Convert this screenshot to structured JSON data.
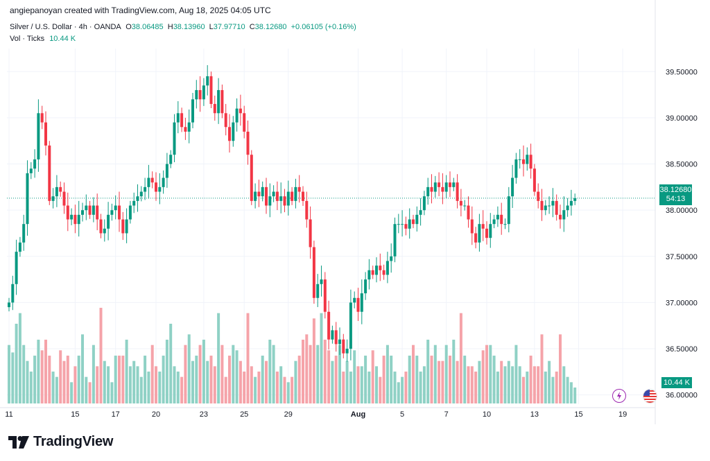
{
  "header": {
    "attribution": "angiepanoyan created with TradingView.com, Aug 18, 2025 04:05 UTC"
  },
  "legend": {
    "symbol": "Silver / U.S. Dollar · 4h · OANDA",
    "o_label": "O",
    "o_value": "38.06485",
    "h_label": "H",
    "h_value": "38.13960",
    "l_label": "L",
    "l_value": "37.97710",
    "c_label": "C",
    "c_value": "38.12680",
    "change": "+0.06105 (+0.16%)",
    "vol_label": "Vol · Ticks",
    "vol_value": "10.44 K"
  },
  "price_tag": {
    "price": "38.12680",
    "countdown": "54:13"
  },
  "volume_tag": "10.44 K",
  "logo": {
    "text": "TradingView"
  },
  "colors": {
    "up": "#089981",
    "down": "#f23645",
    "up_vol": "#8fd1c5",
    "down_vol": "#f5a3a9",
    "grid": "#f0f3fa"
  },
  "icons": [
    "lightning-icon",
    "us-flag-icon",
    "tradingview-logo-icon"
  ],
  "chart_data": {
    "type": "candlestick",
    "ylim": [
      35.9,
      39.75
    ],
    "y_ticks": [
      "39.50000",
      "39.00000",
      "38.50000",
      "38.00000",
      "37.50000",
      "37.00000",
      "36.50000",
      "36.00000"
    ],
    "y_tick_values": [
      39.5,
      39.0,
      38.5,
      38.0,
      37.5,
      37.0,
      36.5,
      36.0
    ],
    "x_ticks": [
      {
        "label": "11",
        "bar": 0,
        "bold": false
      },
      {
        "label": "15",
        "bar": 18,
        "bold": false
      },
      {
        "label": "17",
        "bar": 29,
        "bold": false
      },
      {
        "label": "20",
        "bar": 40,
        "bold": false
      },
      {
        "label": "23",
        "bar": 53,
        "bold": false
      },
      {
        "label": "25",
        "bar": 64,
        "bold": false
      },
      {
        "label": "29",
        "bar": 76,
        "bold": false
      },
      {
        "label": "Aug",
        "bar": 95,
        "bold": true
      },
      {
        "label": "5",
        "bar": 107,
        "bold": false
      },
      {
        "label": "7",
        "bar": 119,
        "bold": false
      },
      {
        "label": "10",
        "bar": 130,
        "bold": false
      },
      {
        "label": "13",
        "bar": 143,
        "bold": false
      },
      {
        "label": "15",
        "bar": 155,
        "bold": false
      },
      {
        "label": "19",
        "bar": 167,
        "bold": false
      }
    ],
    "close": [
      37.0,
      37.2,
      37.55,
      37.65,
      37.85,
      38.4,
      38.45,
      38.55,
      39.05,
      38.95,
      38.7,
      38.1,
      38.15,
      38.25,
      38.2,
      38.05,
      37.9,
      37.95,
      37.85,
      37.95,
      38.0,
      38.05,
      37.95,
      38.05,
      37.9,
      37.75,
      37.8,
      37.95,
      38.0,
      38.05,
      37.9,
      37.75,
      37.9,
      38.05,
      38.1,
      38.15,
      38.2,
      38.25,
      38.35,
      38.3,
      38.2,
      38.25,
      38.35,
      38.5,
      38.6,
      38.95,
      39.05,
      38.9,
      38.85,
      38.95,
      39.2,
      39.3,
      39.2,
      39.35,
      39.45,
      39.15,
      39.05,
      39.3,
      39.05,
      38.9,
      38.75,
      38.95,
      39.1,
      39.05,
      38.85,
      38.6,
      38.1,
      38.2,
      38.15,
      38.25,
      38.05,
      38.15,
      38.2,
      38.1,
      38.15,
      38.05,
      38.2,
      38.1,
      38.25,
      38.2,
      38.1,
      37.9,
      37.6,
      37.05,
      37.2,
      37.25,
      36.9,
      36.6,
      36.7,
      36.55,
      36.6,
      36.45,
      36.5,
      37.0,
      37.05,
      36.9,
      37.1,
      37.25,
      37.35,
      37.3,
      37.4,
      37.35,
      37.3,
      37.45,
      37.5,
      37.85,
      37.85,
      37.85,
      37.8,
      37.9,
      37.85,
      37.95,
      38.0,
      38.15,
      38.25,
      38.2,
      38.3,
      38.25,
      38.2,
      38.3,
      38.25,
      38.3,
      38.1,
      38.05,
      38.05,
      37.9,
      37.75,
      37.65,
      37.85,
      37.8,
      37.7,
      37.85,
      37.9,
      37.95,
      37.85,
      37.85,
      38.15,
      38.35,
      38.55,
      38.55,
      38.5,
      38.6,
      38.45,
      38.2,
      38.1,
      38.0,
      38.05,
      38.05,
      38.1,
      37.95,
      37.9,
      38.0,
      38.05,
      38.1,
      38.13
    ],
    "volume": [
      55,
      48,
      75,
      85,
      55,
      40,
      30,
      45,
      60,
      50,
      60,
      45,
      30,
      25,
      50,
      40,
      45,
      20,
      35,
      45,
      65,
      25,
      20,
      55,
      35,
      90,
      40,
      35,
      20,
      45,
      45,
      45,
      60,
      35,
      40,
      35,
      25,
      45,
      30,
      55,
      35,
      30,
      45,
      60,
      75,
      35,
      30,
      25,
      55,
      65,
      40,
      45,
      55,
      60,
      40,
      45,
      35,
      85,
      55,
      25,
      45,
      55,
      50,
      40,
      30,
      85,
      35,
      25,
      30,
      45,
      40,
      60,
      55,
      30,
      35,
      25,
      20,
      25,
      40,
      45,
      60,
      65,
      55,
      80,
      55,
      85,
      60,
      50,
      40,
      45,
      55,
      30,
      40,
      30,
      50,
      35,
      35,
      45,
      30,
      50,
      35,
      25,
      45,
      55,
      45,
      30,
      20,
      25,
      30,
      45,
      55,
      45,
      30,
      35,
      60,
      45,
      55,
      40,
      40,
      55,
      45,
      60,
      40,
      85,
      45,
      35,
      35,
      30,
      40,
      50,
      55,
      55,
      45,
      30,
      40,
      35,
      40,
      35,
      55,
      35,
      25,
      30,
      45,
      35,
      35,
      65,
      30,
      40,
      25,
      30,
      65,
      35,
      25,
      20,
      15
    ]
  }
}
